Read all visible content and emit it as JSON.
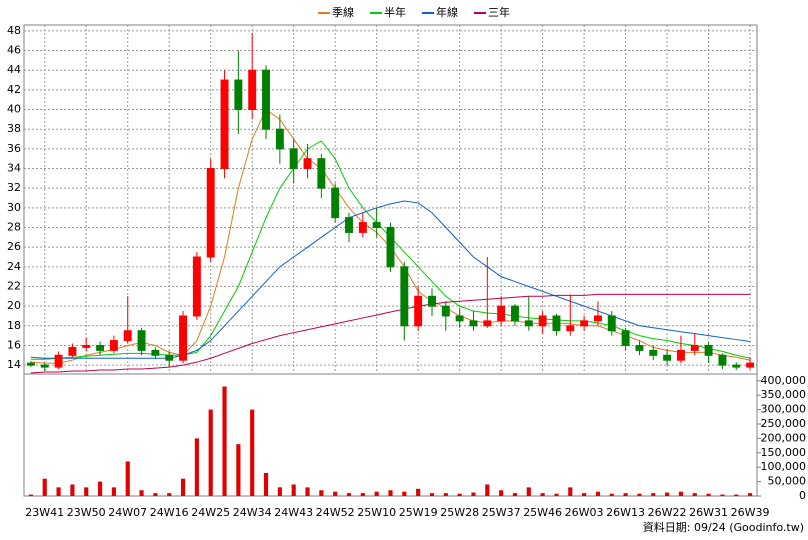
{
  "chart_data": {
    "type": "candlestick",
    "categories": [
      null,
      "23W41",
      null,
      null,
      "23W50",
      null,
      null,
      "24W07",
      null,
      null,
      "24W16",
      null,
      null,
      "24W25",
      null,
      null,
      "24W34",
      null,
      null,
      "24W43",
      null,
      null,
      "24W52",
      null,
      null,
      "25W10",
      null,
      null,
      "25W19",
      null,
      null,
      "25W28",
      null,
      null,
      "25W37",
      null,
      null,
      "25W46",
      null,
      null,
      "26W03",
      null,
      null,
      "26W13",
      null,
      null,
      "26W22",
      null,
      null,
      "26W31",
      null,
      null,
      "26W39"
    ],
    "ohlc": {
      "up_color": "#ff0000",
      "down_color": "#008000",
      "open": [
        14.2,
        14.0,
        13.8,
        15.0,
        15.8,
        16.0,
        15.5,
        16.5,
        17.5,
        15.5,
        15.0,
        14.5,
        19.0,
        25.0,
        34.0,
        43.0,
        40.0,
        44.0,
        38.0,
        36.0,
        34.0,
        35.0,
        32.0,
        29.0,
        27.5,
        28.5,
        28.0,
        24.0,
        18.0,
        21.0,
        20.0,
        19.0,
        18.5,
        18.0,
        18.5,
        20.0,
        18.5,
        18.0,
        19.0,
        17.5,
        18.0,
        18.5,
        19.0,
        17.5,
        16.0,
        15.5,
        15.0,
        14.5,
        15.5,
        16.0,
        15.0,
        14.0,
        13.8
      ],
      "high": [
        14.4,
        14.2,
        15.4,
        16.2,
        16.8,
        16.4,
        17.0,
        21.0,
        17.8,
        15.8,
        15.4,
        19.5,
        25.5,
        35.0,
        44.0,
        46.0,
        47.8,
        44.5,
        39.5,
        37.0,
        36.5,
        35.5,
        32.5,
        29.5,
        29.5,
        30.0,
        28.5,
        24.5,
        22.0,
        21.8,
        20.5,
        19.8,
        19.5,
        25.0,
        21.0,
        20.2,
        21.0,
        19.5,
        19.2,
        21.2,
        19.0,
        20.5,
        19.5,
        17.8,
        16.5,
        16.0,
        15.6,
        17.0,
        17.2,
        16.3,
        15.2,
        14.3,
        14.8
      ],
      "low": [
        13.8,
        13.4,
        13.6,
        14.8,
        15.4,
        15.0,
        15.2,
        16.2,
        15.0,
        14.6,
        13.8,
        14.2,
        18.6,
        24.5,
        33.0,
        37.5,
        39.0,
        37.0,
        34.5,
        32.5,
        33.0,
        31.0,
        28.5,
        26.5,
        27.0,
        27.0,
        23.5,
        16.5,
        17.5,
        19.0,
        17.5,
        17.8,
        17.5,
        17.8,
        18.0,
        18.0,
        17.5,
        17.2,
        17.0,
        17.0,
        17.5,
        18.0,
        17.0,
        15.5,
        15.0,
        14.5,
        14.0,
        14.2,
        15.0,
        14.2,
        13.6,
        13.5,
        13.6
      ],
      "close": [
        14.0,
        13.8,
        15.0,
        15.8,
        16.0,
        15.5,
        16.5,
        17.5,
        15.5,
        15.0,
        14.5,
        19.0,
        25.0,
        34.0,
        43.0,
        40.0,
        44.0,
        38.0,
        36.0,
        34.0,
        35.0,
        32.0,
        29.0,
        27.5,
        28.5,
        28.0,
        24.0,
        18.0,
        21.0,
        20.0,
        19.0,
        18.5,
        18.0,
        18.5,
        20.0,
        18.5,
        18.0,
        19.0,
        17.5,
        18.0,
        18.5,
        19.0,
        17.5,
        16.0,
        15.5,
        15.0,
        14.5,
        15.5,
        16.0,
        15.0,
        14.0,
        13.8,
        14.2
      ]
    },
    "series": [
      {
        "name": "季線",
        "color": "#e07b20",
        "values": [
          14.3,
          14.2,
          14.2,
          14.5,
          15.0,
          15.3,
          15.6,
          16.0,
          16.3,
          16.0,
          15.3,
          15.0,
          16.5,
          20.0,
          25.0,
          32.0,
          37.0,
          40.0,
          39.0,
          37.0,
          35.0,
          34.0,
          32.0,
          30.0,
          28.5,
          27.5,
          26.0,
          24.0,
          21.5,
          20.5,
          19.8,
          19.0,
          18.5,
          18.3,
          18.5,
          18.5,
          18.3,
          18.2,
          18.3,
          18.2,
          18.0,
          18.0,
          17.5,
          17.0,
          16.5,
          15.8,
          15.5,
          15.3,
          15.3,
          15.3,
          15.0,
          14.8,
          14.5
        ]
      },
      {
        "name": "半年",
        "color": "#00cc00",
        "values": [
          14.6,
          14.6,
          14.7,
          14.8,
          14.9,
          15.0,
          15.1,
          15.2,
          15.2,
          15.1,
          15.0,
          15.0,
          15.3,
          17.0,
          19.5,
          22.0,
          25.5,
          29.0,
          32.0,
          34.0,
          36.0,
          36.8,
          35.0,
          32.0,
          30.0,
          28.5,
          27.0,
          25.5,
          24.0,
          22.5,
          21.0,
          20.0,
          19.5,
          19.3,
          19.2,
          19.0,
          18.8,
          18.7,
          18.6,
          18.5,
          18.5,
          18.3,
          18.0,
          17.5,
          17.0,
          16.7,
          16.5,
          16.2,
          16.0,
          15.7,
          15.4,
          15.0,
          14.7
        ]
      },
      {
        "name": "年線",
        "color": "#1060d0",
        "values": [
          14.8,
          14.7,
          14.7,
          14.7,
          14.7,
          14.7,
          14.7,
          14.7,
          14.7,
          14.7,
          14.7,
          15.0,
          15.5,
          16.5,
          18.0,
          19.5,
          21.0,
          22.5,
          24.0,
          25.0,
          26.0,
          27.0,
          28.0,
          29.0,
          29.5,
          30.0,
          30.4,
          30.7,
          30.5,
          29.5,
          28.0,
          26.5,
          25.0,
          24.0,
          23.0,
          22.5,
          22.0,
          21.5,
          21.0,
          20.5,
          20.0,
          19.5,
          19.0,
          18.5,
          18.0,
          17.8,
          17.6,
          17.4,
          17.2,
          17.0,
          16.8,
          16.6,
          16.4
        ]
      },
      {
        "name": "三年",
        "color": "#c00050",
        "values": [
          13.2,
          13.3,
          13.3,
          13.4,
          13.4,
          13.5,
          13.5,
          13.6,
          13.6,
          13.7,
          13.8,
          14.0,
          14.3,
          14.7,
          15.2,
          15.7,
          16.2,
          16.6,
          17.0,
          17.3,
          17.6,
          17.9,
          18.2,
          18.5,
          18.8,
          19.1,
          19.4,
          19.7,
          20.0,
          20.2,
          20.4,
          20.5,
          20.6,
          20.7,
          20.8,
          20.9,
          21.0,
          21.0,
          21.1,
          21.1,
          21.1,
          21.2,
          21.2,
          21.2,
          21.2,
          21.2,
          21.2,
          21.2,
          21.2,
          21.2,
          21.2,
          21.2,
          21.2
        ]
      }
    ],
    "volume": {
      "color": "#e00000",
      "axis": "y2",
      "values": [
        5000,
        60000,
        30000,
        40000,
        30000,
        50000,
        30000,
        120000,
        20000,
        10000,
        10000,
        60000,
        200000,
        300000,
        380000,
        180000,
        300000,
        80000,
        30000,
        40000,
        30000,
        20000,
        15000,
        10000,
        10000,
        15000,
        20000,
        15000,
        25000,
        10000,
        10000,
        8000,
        12000,
        40000,
        20000,
        10000,
        30000,
        10000,
        8000,
        30000,
        10000,
        15000,
        8000,
        10000,
        8000,
        10000,
        12000,
        15000,
        10000,
        8000,
        5000,
        5000,
        10000
      ]
    },
    "ylim": [
      13.3,
      48.6
    ],
    "yticks": [
      14,
      16,
      18,
      20,
      22,
      24,
      26,
      28,
      30,
      32,
      34,
      36,
      38,
      40,
      42,
      44,
      46,
      48
    ],
    "y2lim": [
      0,
      420000
    ],
    "y2ticks": [
      0,
      {
        "value": 50000,
        "label": "50,000"
      },
      {
        "value": 100000,
        "label": "100,000"
      },
      {
        "value": 150000,
        "label": "150,000"
      },
      {
        "value": 200000,
        "label": "200,000"
      },
      {
        "value": 250000,
        "label": "250,000"
      },
      {
        "value": 300000,
        "label": "300,000"
      },
      {
        "value": 350000,
        "label": "350,000"
      },
      {
        "value": 400000,
        "label": "400,000"
      }
    ],
    "grid": true,
    "footer": "資料日期: 09/24 (Goodinfo.tw)"
  }
}
